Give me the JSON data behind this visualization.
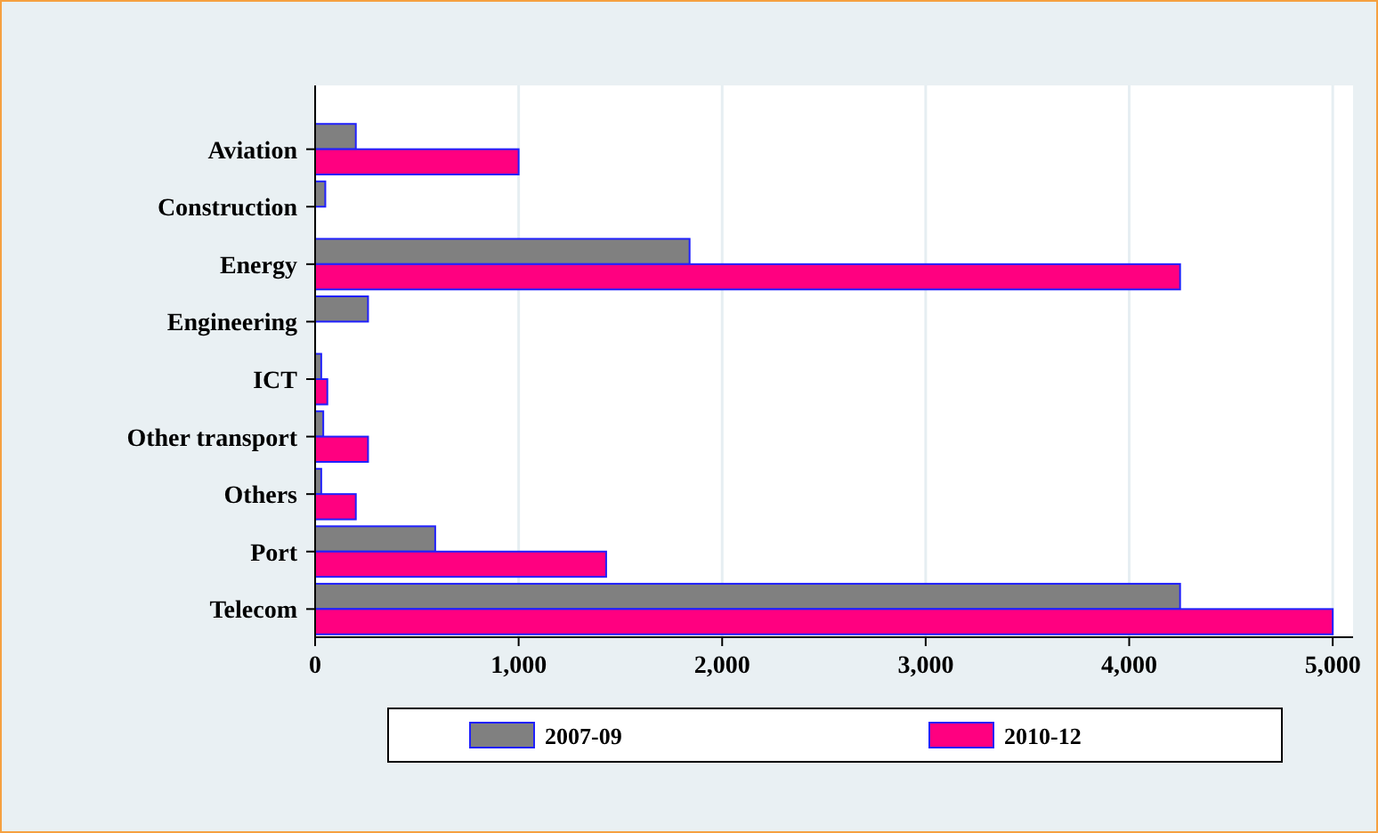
{
  "chart_data": {
    "type": "bar",
    "orientation": "horizontal",
    "categories": [
      "Aviation",
      "Construction",
      "Energy",
      "Engineering",
      "ICT",
      "Other transport",
      "Others",
      "Port",
      "Telecom"
    ],
    "series": [
      {
        "name": "2007-09",
        "color": "#808080",
        "values": [
          200,
          50,
          1840,
          260,
          30,
          40,
          30,
          590,
          4250
        ]
      },
      {
        "name": "2010-12",
        "color": "#ff0080",
        "values": [
          1000,
          0,
          4250,
          0,
          60,
          260,
          200,
          1430,
          5000
        ]
      }
    ],
    "xlim": [
      0,
      5100
    ],
    "xticks": [
      {
        "value": 0,
        "label": "0"
      },
      {
        "value": 1000,
        "label": "1,000"
      },
      {
        "value": 2000,
        "label": "2,000"
      },
      {
        "value": 3000,
        "label": "3,000"
      },
      {
        "value": 4000,
        "label": "4,000"
      },
      {
        "value": 5000,
        "label": "5,000"
      }
    ],
    "grid": "x",
    "legend": "bottom"
  }
}
